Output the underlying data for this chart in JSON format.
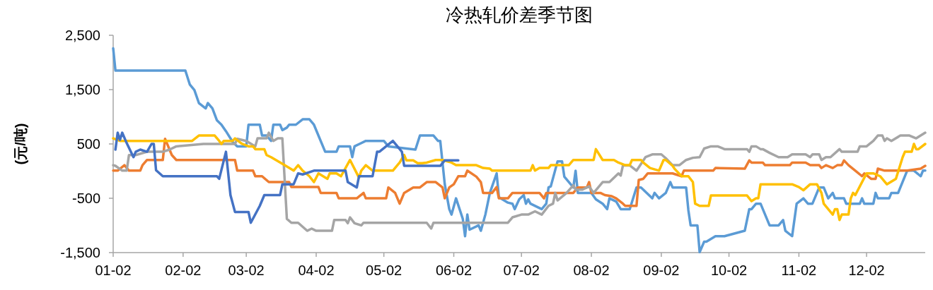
{
  "chart_data": {
    "type": "line",
    "title": "冷热轧价差季节图",
    "ylabel": "(元/吨)",
    "xlim": [
      "--01-02",
      "--12-28"
    ],
    "xticks": [
      {
        "value": "--01-02",
        "label": "01-02"
      },
      {
        "value": "--02-02",
        "label": "02-02"
      },
      {
        "value": "--03-02",
        "label": "03-02"
      },
      {
        "value": "--04-02",
        "label": "04-02"
      },
      {
        "value": "--05-02",
        "label": "05-02"
      },
      {
        "value": "--06-02",
        "label": "06-02"
      },
      {
        "value": "--07-02",
        "label": "07-02"
      },
      {
        "value": "--08-02",
        "label": "08-02"
      },
      {
        "value": "--09-02",
        "label": "09-02"
      },
      {
        "value": "--10-02",
        "label": "10-02"
      },
      {
        "value": "--11-02",
        "label": "11-02"
      },
      {
        "value": "--12-02",
        "label": "12-02"
      }
    ],
    "ylim": [
      -1500,
      2500
    ],
    "yticks": [
      {
        "value": -1500,
        "label": "-1,500"
      },
      {
        "value": -500,
        "label": "-500"
      },
      {
        "value": 500,
        "label": "500"
      },
      {
        "value": 1500,
        "label": "1,500"
      },
      {
        "value": 2500,
        "label": "2,500"
      }
    ],
    "series": [
      {
        "color": "#5b9bd5",
        "x": [
          "--01-02",
          "--01-03",
          "--02-03",
          "--02-05",
          "--02-07",
          "--02-09",
          "--02-12",
          "--02-13",
          "--02-15",
          "--02-17",
          "--02-19",
          "--02-21",
          "--02-24",
          "--02-26",
          "--03-02",
          "--03-03",
          "--03-08",
          "--03-09",
          "--03-11",
          "--03-13",
          "--03-14",
          "--03-17",
          "--03-18",
          "--03-20",
          "--03-21",
          "--03-24",
          "--03-27",
          "--03-30",
          "--04-01",
          "--04-06",
          "--04-11",
          "--04-12",
          "--04-17",
          "--04-18",
          "--04-19",
          "--04-24",
          "--05-02",
          "--05-04",
          "--05-16",
          "--05-18",
          "--05-24",
          "--05-26",
          "--05-27",
          "--05-29",
          "--05-31",
          "--06-01",
          "--06-03",
          "--06-06",
          "--06-07",
          "--06-08",
          "--06-09",
          "--06-13",
          "--06-14",
          "--06-16",
          "--06-18",
          "--06-21",
          "--06-22",
          "--06-26",
          "--06-28",
          "--06-29",
          "--07-01",
          "--07-03",
          "--07-04",
          "--07-05",
          "--07-06",
          "--07-11",
          "--07-13",
          "--07-14",
          "--07-15",
          "--07-18",
          "--07-20",
          "--07-21",
          "--07-25",
          "--07-26",
          "--07-27",
          "--08-02",
          "--08-04",
          "--08-07",
          "--08-09",
          "--08-10",
          "--08-13",
          "--08-15",
          "--08-19",
          "--08-22",
          "--08-24",
          "--08-29",
          "--08-30",
          "--09-01",
          "--09-04",
          "--09-06",
          "--09-07",
          "--09-13",
          "--09-14",
          "--09-15",
          "--09-18",
          "--09-19",
          "--09-21",
          "--09-22",
          "--09-26",
          "--09-30",
          "--10-09",
          "--10-11",
          "--10-12",
          "--10-14",
          "--10-16",
          "--10-20",
          "--10-24",
          "--10-26",
          "--10-27",
          "--10-30",
          "--11-01",
          "--11-04",
          "--11-06",
          "--11-08",
          "--11-11",
          "--11-13",
          "--11-15",
          "--11-17",
          "--11-18",
          "--11-22",
          "--11-23",
          "--11-29",
          "--11-30",
          "--12-01",
          "--12-05",
          "--12-06",
          "--12-07",
          "--12-12",
          "--12-13",
          "--12-16",
          "--12-20",
          "--12-23",
          "--12-26",
          "--12-27",
          "--12-28"
        ],
        "values": [
          2261,
          1850,
          1850,
          1591,
          1492,
          1253,
          1153,
          1253,
          1153,
          934,
          854,
          735,
          536,
          456,
          456,
          854,
          854,
          655,
          655,
          556,
          854,
          854,
          755,
          800,
          854,
          854,
          954,
          954,
          854,
          356,
          356,
          456,
          456,
          257,
          456,
          556,
          556,
          456,
          396,
          655,
          655,
          556,
          556,
          -242,
          -700,
          -800,
          -501,
          -879,
          -1198,
          -800,
          -1078,
          -999,
          -1098,
          -800,
          -401,
          -42,
          -480,
          -580,
          -600,
          -700,
          -520,
          -441,
          -600,
          -521,
          -600,
          -700,
          -600,
          -301,
          -281,
          177,
          177,
          -102,
          -301,
          7,
          -401,
          -401,
          -520,
          -600,
          -700,
          -501,
          -560,
          -700,
          -700,
          -301,
          -301,
          -501,
          -401,
          -501,
          -401,
          -202,
          -301,
          -301,
          -720,
          -999,
          -999,
          -1490,
          -1298,
          -1298,
          -1198,
          -1198,
          -1098,
          -700,
          -700,
          -600,
          -600,
          -999,
          -999,
          -900,
          -1098,
          -1198,
          -600,
          -501,
          -600,
          -600,
          -301,
          -301,
          -501,
          -401,
          -501,
          -501,
          -600,
          -600,
          -501,
          -600,
          -600,
          -401,
          -501,
          -501,
          -401,
          -401,
          9,
          9,
          -94,
          9,
          9
        ]
      },
      {
        "color": "#ed7d31",
        "x": [
          "--01-02",
          "--01-04",
          "--01-07",
          "--01-09",
          "--01-14",
          "--01-15",
          "--01-17",
          "--01-24",
          "--01-25",
          "--01-28",
          "--01-30",
          "--02-25",
          "--02-26",
          "--03-05",
          "--03-06",
          "--03-09",
          "--03-12",
          "--03-21",
          "--03-22",
          "--04-03",
          "--04-04",
          "--04-11",
          "--04-12",
          "--04-20",
          "--04-23",
          "--04-24",
          "--05-03",
          "--05-04",
          "--05-07",
          "--05-09",
          "--05-11",
          "--05-15",
          "--05-18",
          "--05-21",
          "--05-25",
          "--05-28",
          "--05-29",
          "--05-31",
          "--06-02",
          "--06-04",
          "--06-07",
          "--06-08",
          "--06-12",
          "--06-14",
          "--06-15",
          "--06-19",
          "--06-21",
          "--06-22",
          "--06-26",
          "--06-28",
          "--07-10",
          "--07-12",
          "--07-13",
          "--07-25",
          "--07-27",
          "--07-31",
          "--08-01",
          "--08-02",
          "--08-06",
          "--08-08",
          "--08-11",
          "--08-13",
          "--08-16",
          "--08-17",
          "--08-22",
          "--08-23",
          "--08-25",
          "--08-27",
          "--09-07",
          "--09-11",
          "--09-12",
          "--09-25",
          "--09-26",
          "--10-09",
          "--10-11",
          "--10-12",
          "--10-17",
          "--10-18",
          "--10-29",
          "--10-30",
          "--11-05",
          "--11-07",
          "--11-11",
          "--11-12",
          "--11-14",
          "--11-17",
          "--11-19",
          "--11-21",
          "--11-22",
          "--11-24",
          "--11-27",
          "--11-30",
          "--12-01",
          "--12-04",
          "--12-06",
          "--12-07",
          "--12-10",
          "--12-20",
          "--12-26",
          "--12-28"
        ],
        "values": [
          9,
          9,
          109,
          9,
          9,
          109,
          205,
          205,
          595,
          296,
          205,
          205,
          9,
          9,
          -94,
          -94,
          -202,
          -202,
          -293,
          -293,
          -401,
          -401,
          -501,
          -501,
          -401,
          -501,
          -501,
          -301,
          -401,
          -600,
          -401,
          -301,
          -301,
          -202,
          -202,
          -301,
          -501,
          -301,
          -242,
          -94,
          -94,
          9,
          -102,
          -202,
          -401,
          -401,
          -293,
          -501,
          -501,
          -401,
          -401,
          -501,
          -401,
          -401,
          -301,
          -301,
          -202,
          -401,
          -401,
          -441,
          -461,
          -501,
          -600,
          -640,
          -640,
          -162,
          -142,
          -42,
          -42,
          -94,
          9,
          9,
          57,
          45,
          197,
          157,
          157,
          109,
          109,
          157,
          157,
          109,
          109,
          57,
          109,
          57,
          109,
          109,
          197,
          109,
          9,
          -94,
          -42,
          -142,
          -142,
          45,
          9,
          9,
          45,
          97
        ]
      },
      {
        "color": "#a5a5a5",
        "x": [
          "--01-02",
          "--01-03",
          "--01-06",
          "--01-08",
          "--01-09",
          "--01-12",
          "--01-17",
          "--01-24",
          "--01-27",
          "--01-30",
          "--02-11",
          "--02-25",
          "--02-26",
          "--03-02",
          "--03-06",
          "--03-07",
          "--03-11",
          "--03-12",
          "--03-14",
          "--03-16",
          "--03-18",
          "--03-20",
          "--03-22",
          "--03-25",
          "--03-29",
          "--03-31",
          "--04-02",
          "--04-09",
          "--04-10",
          "--04-15",
          "--04-16",
          "--04-17",
          "--04-19",
          "--04-22",
          "--04-23",
          "--05-21",
          "--05-23",
          "--05-24",
          "--06-26",
          "--06-28",
          "--07-02",
          "--07-05",
          "--07-08",
          "--07-11",
          "--07-14",
          "--07-16",
          "--07-17",
          "--07-18",
          "--07-22",
          "--07-25",
          "--07-26",
          "--07-29",
          "--08-01",
          "--08-03",
          "--08-07",
          "--08-10",
          "--08-14",
          "--08-15",
          "--08-16",
          "--08-19",
          "--08-22",
          "--08-26",
          "--08-29",
          "--09-02",
          "--09-04",
          "--09-07",
          "--09-10",
          "--09-13",
          "--09-16",
          "--09-19",
          "--09-21",
          "--09-24",
          "--09-27",
          "--09-30",
          "--10-10",
          "--10-11",
          "--10-12",
          "--10-14",
          "--10-16",
          "--10-17",
          "--10-20",
          "--10-24",
          "--10-28",
          "--10-30",
          "--11-05",
          "--11-07",
          "--11-08",
          "--11-11",
          "--11-12",
          "--11-14",
          "--11-16",
          "--11-20",
          "--11-21",
          "--11-28",
          "--11-29",
          "--12-02",
          "--12-05",
          "--12-07",
          "--12-09",
          "--12-10",
          "--12-11",
          "--12-13",
          "--12-17",
          "--12-21",
          "--12-24",
          "--12-26",
          "--12-28"
        ],
        "values": [
          109,
          97,
          9,
          9,
          296,
          296,
          356,
          356,
          396,
          456,
          500,
          500,
          595,
          555,
          456,
          603,
          603,
          707,
          555,
          603,
          603,
          -879,
          -951,
          -951,
          -1098,
          -1058,
          -1098,
          -1098,
          -899,
          -899,
          -959,
          -851,
          -959,
          -999,
          -951,
          -951,
          -1058,
          -951,
          -951,
          -851,
          -800,
          -800,
          -740,
          -800,
          -640,
          -600,
          -401,
          -540,
          -401,
          -262,
          -341,
          -341,
          -281,
          -401,
          -202,
          -202,
          -42,
          -82,
          105,
          105,
          7,
          257,
          308,
          308,
          237,
          109,
          109,
          205,
          245,
          257,
          416,
          456,
          456,
          404,
          404,
          356,
          456,
          456,
          404,
          404,
          336,
          257,
          257,
          308,
          308,
          257,
          308,
          308,
          205,
          257,
          257,
          404,
          356,
          356,
          456,
          456,
          556,
          655,
          655,
          556,
          603,
          556,
          655,
          655,
          603,
          655,
          707
        ]
      },
      {
        "color": "#ffc000",
        "x": [
          "--01-02",
          "--01-05",
          "--02-06",
          "--02-09",
          "--02-16",
          "--02-18",
          "--02-19",
          "--02-20",
          "--02-24",
          "--02-25",
          "--02-28",
          "--03-03",
          "--03-05",
          "--03-06",
          "--03-10",
          "--03-11",
          "--03-13",
          "--03-19",
          "--03-23",
          "--03-25",
          "--03-27",
          "--03-30",
          "--04-01",
          "--04-03",
          "--04-07",
          "--04-08",
          "--04-11",
          "--04-13",
          "--04-17",
          "--04-21",
          "--04-22",
          "--04-24",
          "--04-27",
          "--05-06",
          "--05-08",
          "--05-09",
          "--05-11",
          "--05-12",
          "--05-15",
          "--05-17",
          "--05-19",
          "--05-21",
          "--05-25",
          "--05-28",
          "--06-01",
          "--06-03",
          "--06-12",
          "--06-15",
          "--06-18",
          "--06-19",
          "--07-06",
          "--07-07",
          "--07-08",
          "--07-10",
          "--07-14",
          "--07-15",
          "--07-23",
          "--07-25",
          "--08-03",
          "--08-04",
          "--08-07",
          "--08-12",
          "--08-14",
          "--08-17",
          "--08-19",
          "--08-20",
          "--08-24",
          "--08-25",
          "--08-28",
          "--09-01",
          "--09-03",
          "--09-04",
          "--09-07",
          "--09-08",
          "--09-11",
          "--09-14",
          "--09-16",
          "--09-17",
          "--09-19",
          "--09-23",
          "--09-24",
          "--10-10",
          "--10-12",
          "--10-14",
          "--10-15",
          "--10-16",
          "--10-30",
          "--11-02",
          "--11-04",
          "--11-07",
          "--11-10",
          "--11-12",
          "--11-13",
          "--11-17",
          "--11-18",
          "--11-19",
          "--11-20",
          "--11-21",
          "--11-24",
          "--11-25",
          "--11-26",
          "--11-27",
          "--12-02",
          "--12-05",
          "--12-08",
          "--12-11",
          "--12-15",
          "--12-18",
          "--12-19",
          "--12-22",
          "--12-23",
          "--12-24",
          "--12-25",
          "--12-28"
        ],
        "values": [
          603,
          556,
          556,
          655,
          655,
          556,
          500,
          556,
          556,
          603,
          505,
          456,
          456,
          404,
          404,
          296,
          256,
          109,
          9,
          109,
          9,
          -94,
          -202,
          -42,
          -142,
          -42,
          -42,
          -94,
          205,
          -122,
          9,
          109,
          9,
          9,
          109,
          157,
          296,
          197,
          197,
          147,
          147,
          157,
          205,
          205,
          157,
          109,
          109,
          57,
          45,
          9,
          9,
          109,
          9,
          57,
          57,
          109,
          109,
          205,
          205,
          404,
          205,
          205,
          157,
          109,
          109,
          205,
          205,
          157,
          57,
          9,
          205,
          205,
          97,
          37,
          -94,
          -94,
          -202,
          -600,
          -640,
          -640,
          -449,
          -449,
          -553,
          -501,
          -501,
          -242,
          -242,
          -293,
          -353,
          -242,
          -242,
          -401,
          -600,
          -800,
          -700,
          -700,
          -899,
          -800,
          -800,
          -501,
          -401,
          -441,
          -42,
          -42,
          -94,
          -242,
          -142,
          257,
          356,
          356,
          500,
          404,
          404,
          500
        ]
      },
      {
        "color": "#4472c4",
        "x": [
          "--01-03",
          "--01-04",
          "--01-05",
          "--01-06",
          "--01-08",
          "--01-11",
          "--01-12",
          "--01-14",
          "--01-17",
          "--01-19",
          "--01-20",
          "--01-21",
          "--01-24",
          "--02-17",
          "--02-18",
          "--02-21",
          "--02-23",
          "--02-25",
          "--03-03",
          "--03-04",
          "--03-08",
          "--03-10",
          "--03-17",
          "--03-18",
          "--03-23",
          "--03-25",
          "--03-27",
          "--04-01",
          "--04-15",
          "--04-16",
          "--04-20",
          "--04-21",
          "--04-27",
          "--04-29",
          "--04-30",
          "--05-06",
          "--05-10",
          "--05-11",
          "--05-27",
          "--05-29",
          "--06-04"
        ],
        "values": [
          396,
          707,
          575,
          707,
          515,
          257,
          356,
          396,
          356,
          500,
          500,
          17,
          -94,
          -94,
          -142,
          356,
          -441,
          -752,
          -752,
          -951,
          -640,
          -441,
          -441,
          -242,
          -242,
          -42,
          -62,
          9,
          9,
          -202,
          -301,
          -94,
          -94,
          356,
          356,
          556,
          356,
          97,
          97,
          197,
          197
        ]
      }
    ]
  }
}
